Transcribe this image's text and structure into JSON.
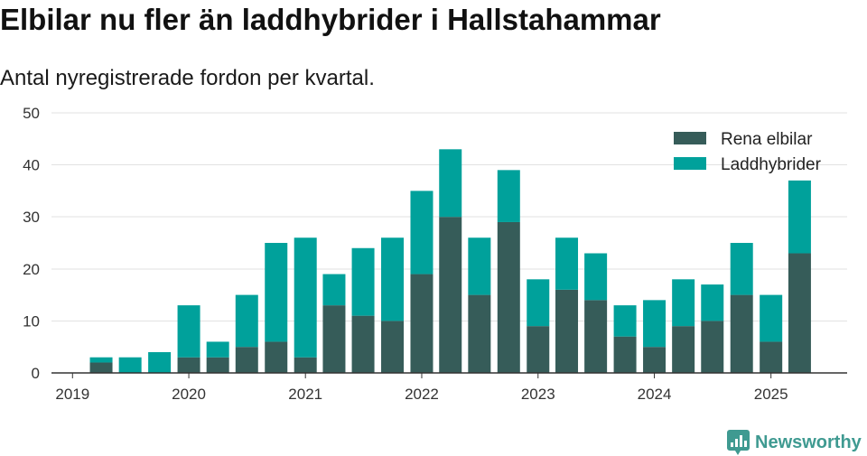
{
  "chart_data": {
    "type": "bar",
    "stacked": true,
    "title": "Elbilar nu fler än laddhybrider i Hallstahammar",
    "subtitle": "Antal nyregistrerade fordon per kvartal.",
    "x": [
      "2019-04-01",
      "2019-07-01",
      "2019-10-01",
      "2020-01-01",
      "2020-04-01",
      "2020-07-01",
      "2020-10-01",
      "2021-01-01",
      "2021-04-01",
      "2021-07-01",
      "2021-10-01",
      "2022-01-01",
      "2022-04-01",
      "2022-07-01",
      "2022-10-01",
      "2023-01-01",
      "2023-04-01",
      "2023-07-01",
      "2023-10-01",
      "2024-01-01",
      "2024-04-01",
      "2024-07-01",
      "2024-10-01",
      "2025-01-01",
      "2025-04-01"
    ],
    "series": [
      {
        "name": "Rena elbilar",
        "color": "#365c59",
        "values": [
          2,
          0,
          0,
          3,
          3,
          5,
          6,
          3,
          13,
          11,
          10,
          19,
          30,
          15,
          29,
          9,
          16,
          14,
          7,
          5,
          9,
          10,
          15,
          6,
          23
        ]
      },
      {
        "name": "Laddhybrider",
        "color": "#00a19b",
        "values": [
          1,
          3,
          4,
          10,
          3,
          10,
          19,
          23,
          6,
          13,
          16,
          16,
          13,
          11,
          10,
          9,
          10,
          9,
          6,
          9,
          9,
          7,
          10,
          9,
          14
        ]
      }
    ],
    "x_ticks": [
      "2019",
      "2020",
      "2021",
      "2022",
      "2023",
      "2024",
      "2025"
    ],
    "y_ticks": [
      0,
      10,
      20,
      30,
      40,
      50
    ],
    "xlim": [
      "2018-10-27",
      "2025-08-28"
    ],
    "ylim": [
      0,
      50
    ],
    "grid": "horizontal",
    "legend_position": "top-right"
  },
  "brand": {
    "name": "Newsworthy",
    "icon": "newsworthy-logo-icon"
  },
  "colors": {
    "axis": "#333333",
    "grid": "#e2e2e2",
    "brand": "#3f9a91"
  }
}
